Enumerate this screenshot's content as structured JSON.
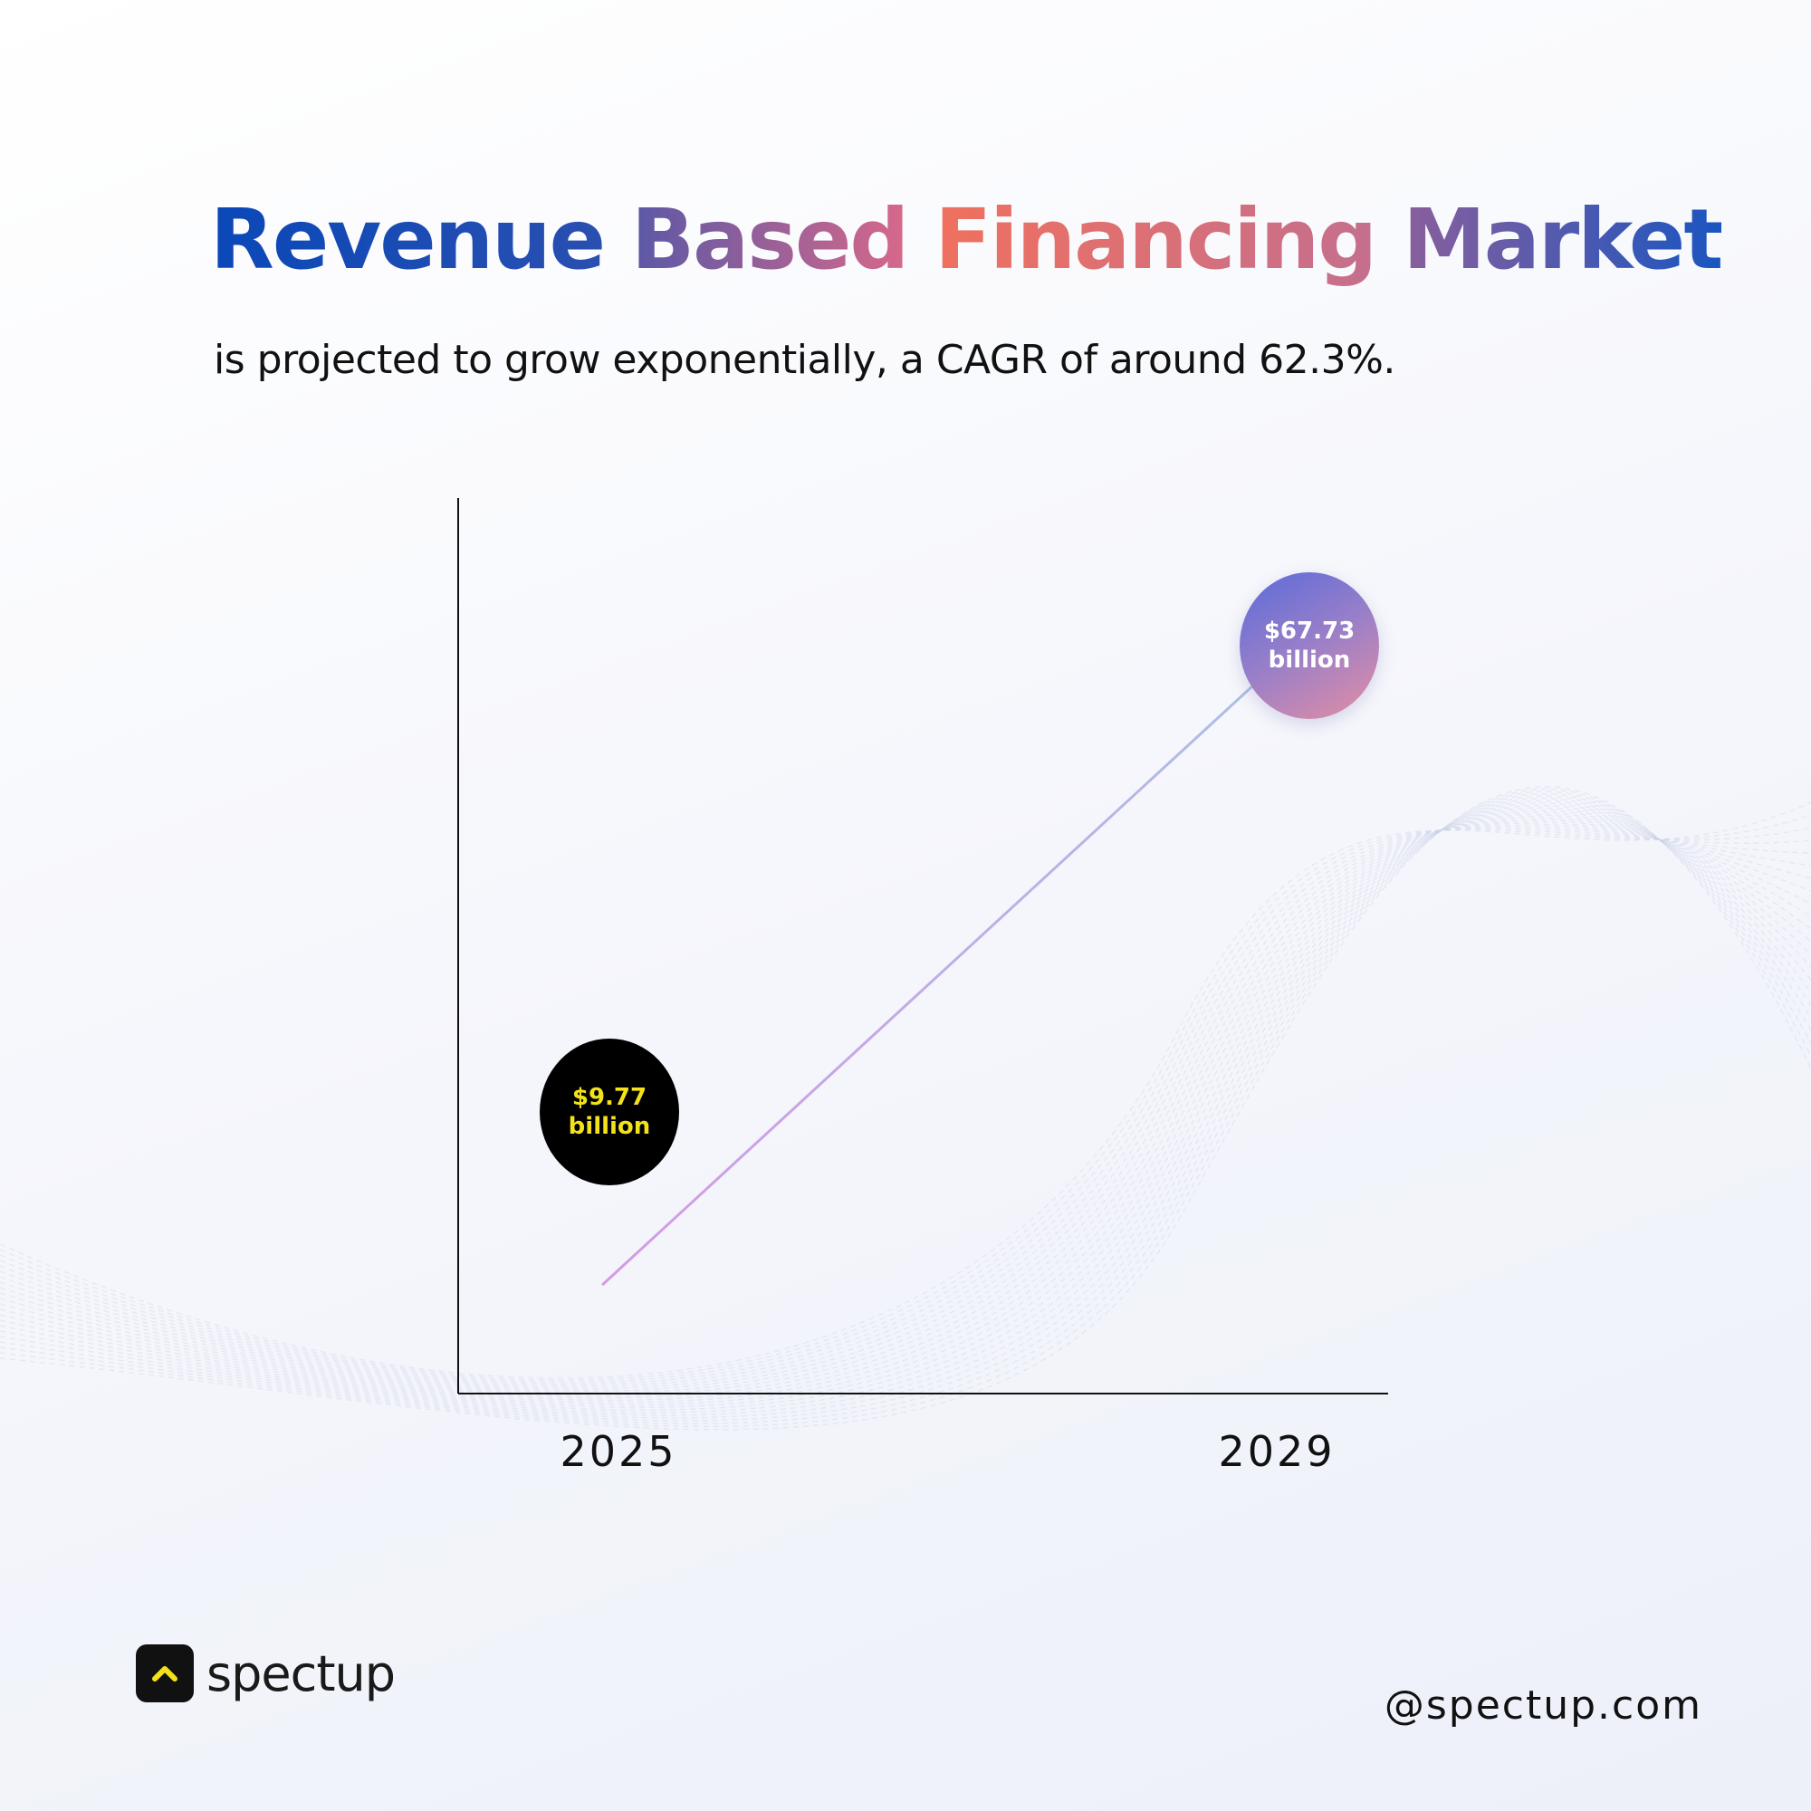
{
  "header": {
    "title_words": [
      {
        "text": "Revenue",
        "gradient": [
          "#0a48b8",
          "#2a4fb0"
        ]
      },
      {
        "text": "Based",
        "gradient": [
          "#5a58a6",
          "#d8688a"
        ]
      },
      {
        "text": "Financing",
        "gradient": [
          "#f0705e",
          "#c46f8e"
        ]
      },
      {
        "text": "Market",
        "gradient": [
          "#8a5f9c",
          "#1a55c0"
        ]
      }
    ],
    "subtitle": "is projected to grow exponentially, a CAGR of around 62.3%."
  },
  "chart_data": {
    "type": "line",
    "title": "Revenue Based Financing Market",
    "x": [
      "2025",
      "2029"
    ],
    "series": [
      {
        "values": [
          9.77,
          67.73
        ],
        "color_start": "#d49ae6",
        "color_end": "#a9c2e4"
      }
    ],
    "data_labels": [
      {
        "value": "$9.77",
        "unit": "billion",
        "bg": "#000000",
        "text_color": "#f3e21a"
      },
      {
        "value": "$67.73",
        "unit": "billion",
        "bg": "gradient",
        "text_color": "#ffffff"
      }
    ],
    "xlabel": "",
    "ylabel": "",
    "ylim": [
      0,
      80
    ],
    "grid": false,
    "legend": "none"
  },
  "footer": {
    "brand": "spectup",
    "brand_icon": "chevron-up-icon",
    "brand_icon_color": "#f3e21a",
    "handle": "@spectup.com"
  }
}
